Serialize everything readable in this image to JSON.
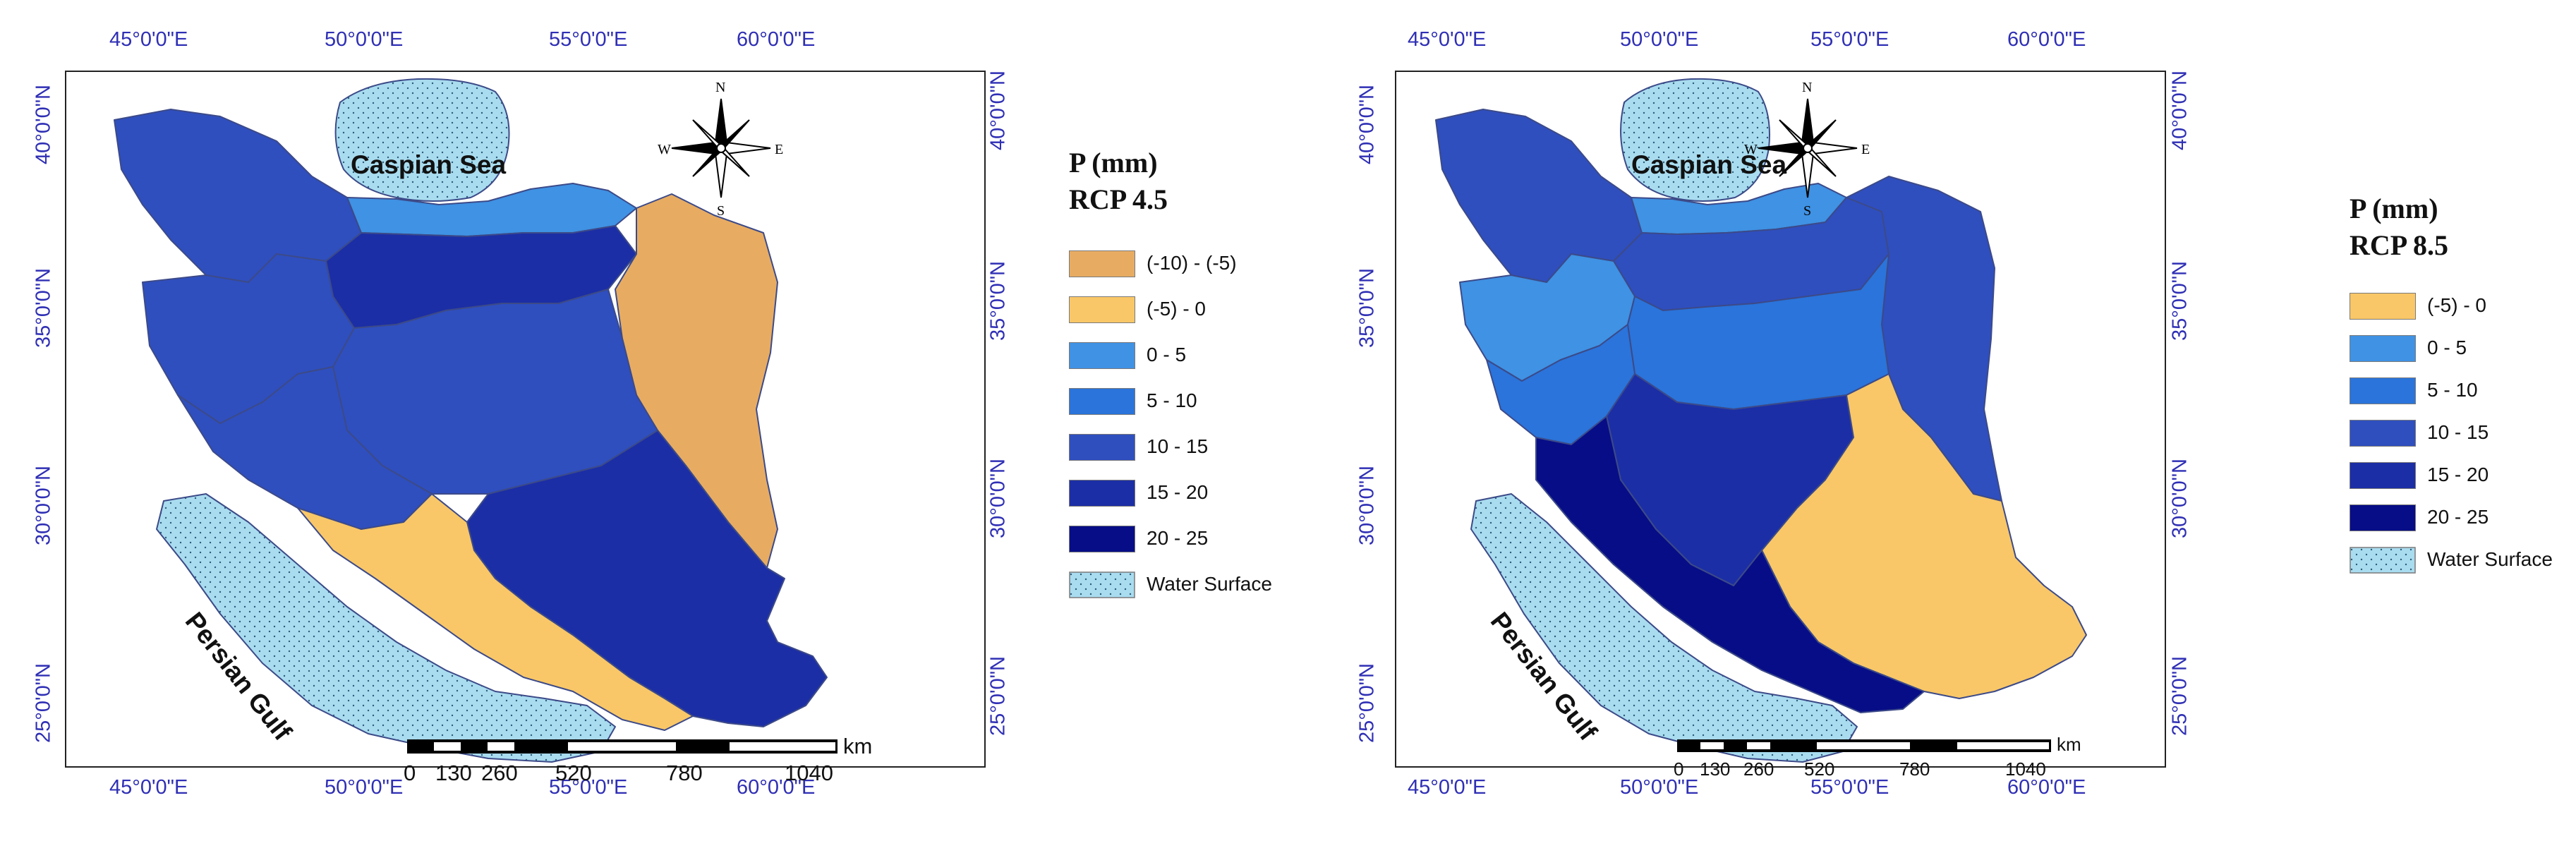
{
  "colors": {
    "water": "#a9dcef",
    "class_m10_m5": "#e7ac62",
    "class_m5_0": "#f9c767",
    "class_0_5": "#3f92e4",
    "class_5_10": "#2a74db",
    "class_10_15": "#2f4fbf",
    "class_15_20": "#1c2ea5",
    "class_20_25": "#070d86",
    "axis_text": "#2f2fb5"
  },
  "axes": {
    "lon_ticks": [
      "45°0'0\"E",
      "50°0'0\"E",
      "55°0'0\"E",
      "60°0'0\"E"
    ],
    "lat_ticks": [
      "40°0'0\"N",
      "35°0'0\"N",
      "30°0'0\"N",
      "25°0'0\"N"
    ]
  },
  "north_arrow_letters": {
    "n": "N",
    "s": "S",
    "e": "E",
    "w": "W"
  },
  "labels": {
    "caspian": "Caspian Sea",
    "gulf": "Persian Gulf"
  },
  "scale_bar": {
    "values": [
      "0",
      "130",
      "260",
      "520",
      "780",
      "1040"
    ],
    "unit": "km"
  },
  "maps": [
    {
      "legend_title_line1": "P (mm)",
      "legend_title_line2": "RCP 4.5",
      "legend": [
        {
          "label": "(-10) - (-5)",
          "color": "#e7ac62"
        },
        {
          "label": "(-5) - 0",
          "color": "#f9c767"
        },
        {
          "label": "0 - 5",
          "color": "#3f92e4"
        },
        {
          "label": "5 - 10",
          "color": "#2a74db"
        },
        {
          "label": "10 - 15",
          "color": "#2f4fbf"
        },
        {
          "label": "15 - 20",
          "color": "#1c2ea5"
        },
        {
          "label": "20 - 25",
          "color": "#070d86"
        },
        {
          "label": "Water Surface",
          "color": "#a9dcef"
        }
      ]
    },
    {
      "legend_title_line1": "P (mm)",
      "legend_title_line2": "RCP 8.5",
      "legend": [
        {
          "label": "(-5) - 0",
          "color": "#f9c767"
        },
        {
          "label": "0 - 5",
          "color": "#3f92e4"
        },
        {
          "label": "5 - 10",
          "color": "#2a74db"
        },
        {
          "label": "10 - 15",
          "color": "#2f4fbf"
        },
        {
          "label": "15 - 20",
          "color": "#1c2ea5"
        },
        {
          "label": "20 - 25",
          "color": "#070d86"
        },
        {
          "label": "Water Surface",
          "color": "#a9dcef"
        }
      ]
    }
  ]
}
